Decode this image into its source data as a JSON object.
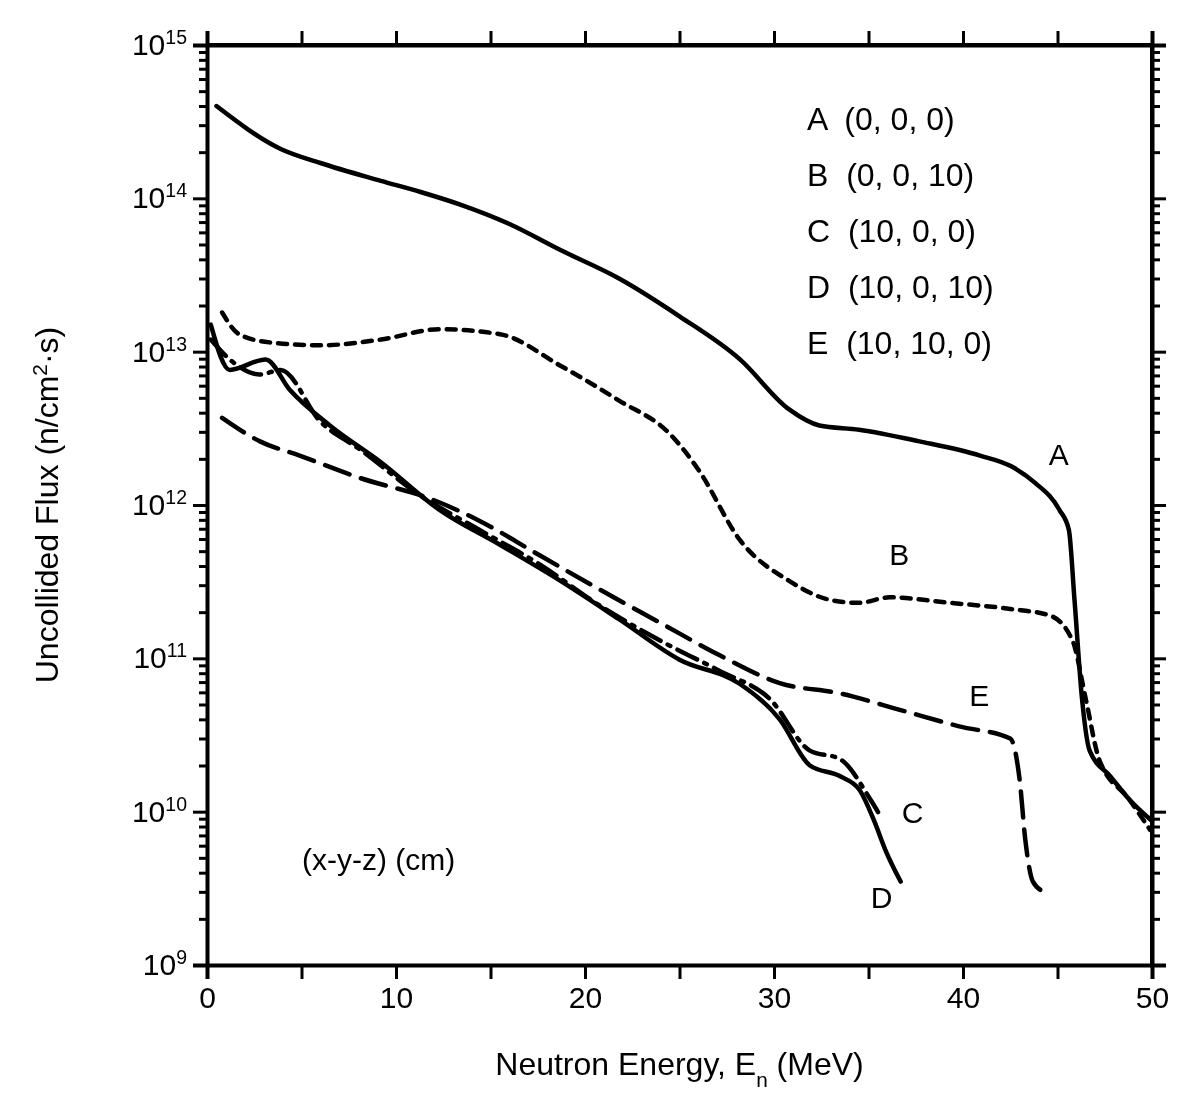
{
  "chart_data": {
    "type": "line",
    "xlabel": "Neutron Energy, E$_{n}$ (MeV)",
    "ylabel": "Uncollided Flux (n/cm$^{2}$·s)",
    "log": "y",
    "xlim": [
      0,
      50
    ],
    "ylim": [
      1000000000.0,
      1000000000000000.0
    ],
    "xticks": [
      0,
      {
        "value": 5,
        "label": null
      },
      10,
      {
        "value": 15,
        "label": null
      },
      20,
      {
        "value": 25,
        "label": null
      },
      30,
      {
        "value": 35,
        "label": null
      },
      40,
      {
        "value": 45,
        "label": null
      },
      50
    ],
    "yticks": [
      {
        "value": 1000000000.0,
        "label": "10$^{9}$"
      },
      {
        "value": 2000000000.0,
        "label": null
      },
      {
        "value": 3000000000.0,
        "label": null
      },
      {
        "value": 4000000000.0,
        "label": null
      },
      {
        "value": 5000000000.0,
        "label": null
      },
      {
        "value": 6000000000.0,
        "label": null
      },
      {
        "value": 7000000000.0,
        "label": null
      },
      {
        "value": 8000000000.0,
        "label": null
      },
      {
        "value": 9000000000.0,
        "label": null
      },
      {
        "value": 10000000000.0,
        "label": "10$^{10}$"
      },
      {
        "value": 20000000000.0,
        "label": null
      },
      {
        "value": 30000000000.0,
        "label": null
      },
      {
        "value": 40000000000.0,
        "label": null
      },
      {
        "value": 50000000000.0,
        "label": null
      },
      {
        "value": 60000000000.0,
        "label": null
      },
      {
        "value": 70000000000.0,
        "label": null
      },
      {
        "value": 80000000000.0,
        "label": null
      },
      {
        "value": 90000000000.0,
        "label": null
      },
      {
        "value": 100000000000.0,
        "label": "10$^{11}$"
      },
      {
        "value": 200000000000.0,
        "label": null
      },
      {
        "value": 300000000000.0,
        "label": null
      },
      {
        "value": 400000000000.0,
        "label": null
      },
      {
        "value": 500000000000.0,
        "label": null
      },
      {
        "value": 600000000000.0,
        "label": null
      },
      {
        "value": 700000000000.0,
        "label": null
      },
      {
        "value": 800000000000.0,
        "label": null
      },
      {
        "value": 900000000000.0,
        "label": null
      },
      {
        "value": 1000000000000.0,
        "label": "10$^{12}$"
      },
      {
        "value": 2000000000000.0,
        "label": null
      },
      {
        "value": 3000000000000.0,
        "label": null
      },
      {
        "value": 4000000000000.0,
        "label": null
      },
      {
        "value": 5000000000000.0,
        "label": null
      },
      {
        "value": 6000000000000.0,
        "label": null
      },
      {
        "value": 7000000000000.0,
        "label": null
      },
      {
        "value": 8000000000000.0,
        "label": null
      },
      {
        "value": 9000000000000.0,
        "label": null
      },
      {
        "value": 10000000000000.0,
        "label": "10$^{13}$"
      },
      {
        "value": 20000000000000.0,
        "label": null
      },
      {
        "value": 30000000000000.0,
        "label": null
      },
      {
        "value": 40000000000000.0,
        "label": null
      },
      {
        "value": 50000000000000.0,
        "label": null
      },
      {
        "value": 60000000000000.0,
        "label": null
      },
      {
        "value": 70000000000000.0,
        "label": null
      },
      {
        "value": 80000000000000.0,
        "label": null
      },
      {
        "value": 90000000000000.0,
        "label": null
      },
      {
        "value": 100000000000000.0,
        "label": "10$^{14}$"
      },
      {
        "value": 200000000000000.0,
        "label": null
      },
      {
        "value": 300000000000000.0,
        "label": null
      },
      {
        "value": 400000000000000.0,
        "label": null
      },
      {
        "value": 500000000000000.0,
        "label": null
      },
      {
        "value": 600000000000000.0,
        "label": null
      },
      {
        "value": 700000000000000.0,
        "label": null
      },
      {
        "value": 800000000000000.0,
        "label": null
      },
      {
        "value": 900000000000000.0,
        "label": null
      },
      {
        "value": 1000000000000000.0,
        "label": "10$^{15}$"
      }
    ],
    "marker": "none",
    "annotations": [
      "A  (0, 0, 0)",
      "B  (0, 0, 10)",
      "C  (10, 0, 0)",
      "D  (10, 0, 10)",
      "E  (10, 10, 0)",
      "(x-y-z) (cm)"
    ],
    "series": [
      {
        "name": "A",
        "color": "#000000",
        "line_style": "solid",
        "x": [
          0.5,
          3.9,
          6,
          9.2,
          11.3,
          13.4,
          16,
          18.7,
          21.8,
          25,
          28.2,
          30.8,
          32.4,
          34.5,
          37.7,
          40.9,
          42.5,
          43.8,
          45.1,
          45.6,
          45.9,
          46.3,
          46.7,
          47.8,
          48.8,
          50
        ],
        "values": [
          400000000000000.0,
          210000000000000.0,
          170000000000000.0,
          130000000000000.0,
          110000000000000.0,
          91000000000000.0,
          68000000000000.0,
          46000000000000.0,
          30000000000000.0,
          17000000000000.0,
          8900000000000.0,
          4200000000000.0,
          3300000000000.0,
          3100000000000.0,
          2600000000000.0,
          2100000000000.0,
          1800000000000.0,
          1400000000000.0,
          930000000000.0,
          690000000000.0,
          240000000000.0,
          54000000000.0,
          25000000000.0,
          17000000000.0,
          12000000000.0,
          8700000000.0
        ]
      },
      {
        "name": "B",
        "color": "#000000",
        "line_style": "dotted",
        "x": [
          0.8,
          1.7,
          3.3,
          6,
          9.2,
          12.3,
          15.5,
          18.7,
          21.8,
          24.5,
          26,
          28.2,
          30.8,
          33,
          34.5,
          36.1,
          39.3,
          42.5,
          44.6,
          45.8,
          46.5,
          47.2,
          48.8,
          49.9
        ],
        "values": [
          18000000000000.0,
          13000000000000.0,
          11500000000000.0,
          11000000000000.0,
          12000000000000.0,
          14000000000000.0,
          13000000000000.0,
          8100000000000.0,
          4800000000000.0,
          2900000000000.0,
          1700000000000.0,
          590000000000.0,
          320000000000.0,
          240000000000.0,
          230000000000.0,
          250000000000.0,
          230000000000.0,
          210000000000.0,
          190000000000.0,
          130000000000.0,
          54000000000.0,
          22000000000.0,
          12000000000.0,
          7600000000.0
        ]
      },
      {
        "name": "C",
        "color": "#000000",
        "line_style": "dashdot",
        "x": [
          0.2,
          1.2,
          2.8,
          3.9,
          6,
          8.1,
          11.3,
          14.4,
          17.6,
          20.8,
          24,
          27.1,
          29.8,
          31.9,
          33.5,
          35.1,
          35.6
        ],
        "values": [
          12000000000000.0,
          8900000000000.0,
          7100000000000.0,
          7600000000000.0,
          3500000000000.0,
          2300000000000.0,
          1150000000000.0,
          690000000000.0,
          410000000000.0,
          220000000000.0,
          130000000000.0,
          83000000000.0,
          54000000000.0,
          25000000000.0,
          22000000000.0,
          12000000000.0,
          9500000000.0
        ]
      },
      {
        "name": "D",
        "color": "#000000",
        "line_style": "solid",
        "x": [
          0.2,
          1.2,
          3.1,
          4.4,
          6.5,
          9.2,
          12.3,
          15.5,
          18.7,
          21.8,
          25,
          28.2,
          30.3,
          31.9,
          33.5,
          34.5,
          35.3,
          35.9,
          36.7
        ],
        "values": [
          15000000000000.0,
          7600000000000.0,
          8900000000000.0,
          5600000000000.0,
          3300000000000.0,
          1900000000000.0,
          930000000000.0,
          550000000000.0,
          320000000000.0,
          180000000000.0,
          98000000000.0,
          68000000000.0,
          40000000000.0,
          20000000000.0,
          17000000000.0,
          14000000000.0,
          8700000000.0,
          5600000000.0,
          3500000000.0
        ]
      },
      {
        "name": "E",
        "color": "#000000",
        "line_style": "dashed",
        "x": [
          0.8,
          2.8,
          4.9,
          8.1,
          11.8,
          14.4,
          17.6,
          20.8,
          24,
          27.1,
          30.3,
          33.5,
          36.7,
          39.8,
          42.5,
          43,
          43.3,
          43.7,
          44.3
        ],
        "values": [
          3700000000000.0,
          2600000000000.0,
          2100000000000.0,
          1500000000000.0,
          1100000000000.0,
          790000000000.0,
          470000000000.0,
          280000000000.0,
          170000000000.0,
          105000000000.0,
          69000000000.0,
          59000000000.0,
          46000000000.0,
          36000000000.0,
          30000000000.0,
          16000000000.0,
          6500000000.0,
          3500000000.0,
          3000000000.0
        ]
      }
    ]
  }
}
